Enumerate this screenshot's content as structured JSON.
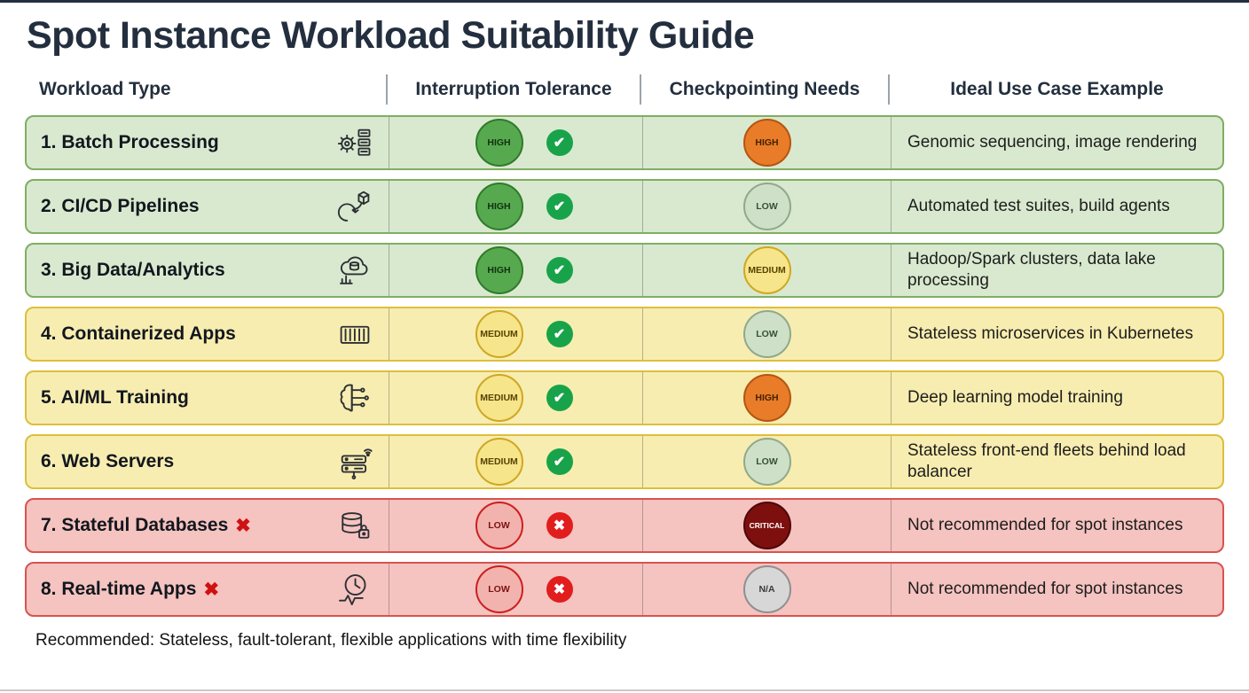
{
  "title": "Spot Instance Workload Suitability Guide",
  "columns": [
    "Workload Type",
    "Interruption Tolerance",
    "Checkpointing Needs",
    "Ideal Use Case Example"
  ],
  "footer": "Recommended: Stateless, fault-tolerant, flexible applications with time flexibility",
  "colors": {
    "green_row": "#d9e9cf",
    "yellow_row": "#f8edb0",
    "red_row": "#f5c3c0",
    "tolerance_high": "#57a94f",
    "tolerance_medium": "#f6e58a",
    "tolerance_low": "#f2b3ae",
    "checkpoint_high": "#e87c28",
    "checkpoint_low": "#cfe0c8",
    "checkpoint_medium": "#f6e58a",
    "checkpoint_critical": "#7e0f0f",
    "checkpoint_na": "#d7d7d7",
    "check_green": "#18a34a",
    "cross_red": "#e11d1d"
  },
  "rows": [
    {
      "name": "1. Batch Processing",
      "icon": "gear-task-list-icon",
      "tone": "green",
      "flagged": false,
      "tolerance": {
        "label": "HIGH",
        "level": "high"
      },
      "suitable": true,
      "checkpointing": {
        "label": "HIGH",
        "level": "high"
      },
      "use_case": "Genomic sequencing, image rendering"
    },
    {
      "name": "2. CI/CD Pipelines",
      "icon": "cicd-pipeline-icon",
      "tone": "green",
      "flagged": false,
      "tolerance": {
        "label": "HIGH",
        "level": "high"
      },
      "suitable": true,
      "checkpointing": {
        "label": "LOW",
        "level": "low"
      },
      "use_case": "Automated test suites, build agents"
    },
    {
      "name": "3. Big Data/Analytics",
      "icon": "cloud-database-chart-icon",
      "tone": "green",
      "flagged": false,
      "tolerance": {
        "label": "HIGH",
        "level": "high"
      },
      "suitable": true,
      "checkpointing": {
        "label": "MEDIUM",
        "level": "medium"
      },
      "use_case": "Hadoop/Spark clusters, data lake processing"
    },
    {
      "name": "4. Containerized Apps",
      "icon": "container-icon",
      "tone": "yellow",
      "flagged": false,
      "tolerance": {
        "label": "MEDIUM",
        "level": "medium"
      },
      "suitable": true,
      "checkpointing": {
        "label": "LOW",
        "level": "low"
      },
      "use_case": "Stateless microservices in Kubernetes"
    },
    {
      "name": "5. AI/ML Training",
      "icon": "brain-circuit-icon",
      "tone": "yellow",
      "flagged": false,
      "tolerance": {
        "label": "MEDIUM",
        "level": "medium"
      },
      "suitable": true,
      "checkpointing": {
        "label": "HIGH",
        "level": "high"
      },
      "use_case": "Deep learning model training"
    },
    {
      "name": "6. Web Servers",
      "icon": "server-stack-icon",
      "tone": "yellow",
      "flagged": false,
      "tolerance": {
        "label": "MEDIUM",
        "level": "medium"
      },
      "suitable": true,
      "checkpointing": {
        "label": "LOW",
        "level": "low"
      },
      "use_case": "Stateless front-end fleets behind load balancer"
    },
    {
      "name": "7. Stateful Databases",
      "icon": "database-lock-icon",
      "tone": "red",
      "flagged": true,
      "tolerance": {
        "label": "LOW",
        "level": "low"
      },
      "suitable": false,
      "checkpointing": {
        "label": "CRITICAL",
        "level": "critical"
      },
      "use_case": "Not recommended for spot instances"
    },
    {
      "name": "8. Real-time Apps",
      "icon": "clock-pulse-icon",
      "tone": "red",
      "flagged": true,
      "tolerance": {
        "label": "LOW",
        "level": "low"
      },
      "suitable": false,
      "checkpointing": {
        "label": "N/A",
        "level": "na"
      },
      "use_case": "Not recommended for spot instances"
    }
  ]
}
